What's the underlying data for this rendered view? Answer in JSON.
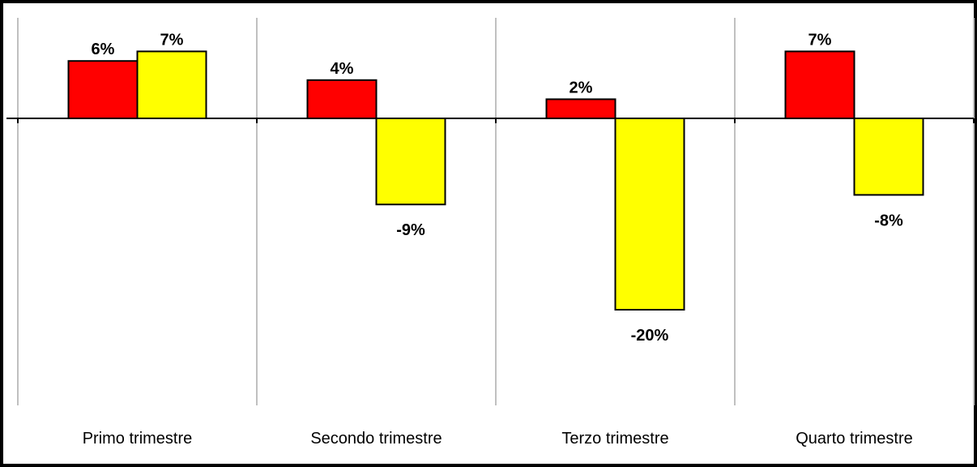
{
  "chart_data": {
    "type": "bar",
    "categories": [
      "Primo trimestre",
      "Secondo trimestre",
      "Terzo trimestre",
      "Quarto trimestre"
    ],
    "series": [
      {
        "values": [
          6,
          4,
          2,
          7
        ],
        "color": "#ff0000",
        "labels": [
          "6%",
          "4%",
          "2%",
          "7%"
        ]
      },
      {
        "values": [
          7,
          -9,
          -20,
          -8
        ],
        "color": "#ffff00",
        "labels": [
          "7%",
          "-9%",
          "-20%",
          "-8%"
        ]
      }
    ],
    "title": "",
    "xlabel": "",
    "ylabel": "",
    "ylim": [
      -30,
      7
    ],
    "value_format": "percent",
    "grid": "vertical separators between categories",
    "legend": "none"
  }
}
